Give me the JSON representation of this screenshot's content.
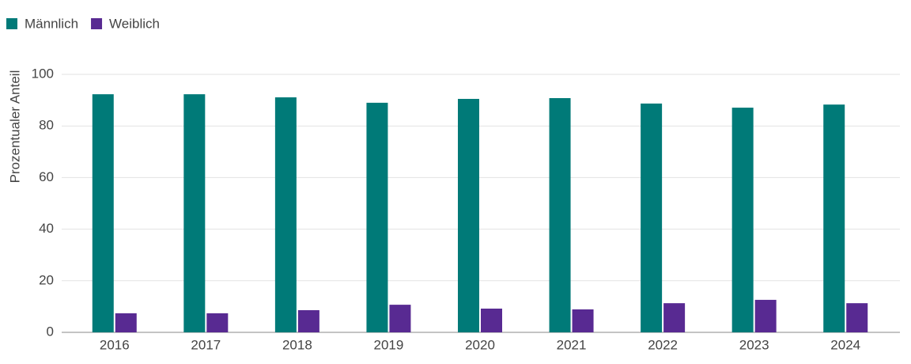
{
  "chart_data": {
    "type": "bar",
    "y_label": "Prozentualer Anteil",
    "categories": [
      "2016",
      "2017",
      "2018",
      "2019",
      "2020",
      "2021",
      "2022",
      "2023",
      "2024"
    ],
    "series": [
      {
        "name": "Männlich",
        "color": "#007a78",
        "values": [
          92.3,
          92.3,
          91.1,
          89.0,
          90.5,
          90.8,
          88.7,
          87.1,
          88.3
        ]
      },
      {
        "name": "Weiblich",
        "color": "#582a92",
        "values": [
          7.4,
          7.4,
          8.6,
          10.7,
          9.2,
          8.9,
          11.3,
          12.6,
          11.3
        ]
      }
    ],
    "ylim": [
      0,
      100
    ],
    "yticks": [
      0,
      20,
      40,
      60,
      80,
      100
    ],
    "grid": true,
    "legend": "top-left"
  }
}
